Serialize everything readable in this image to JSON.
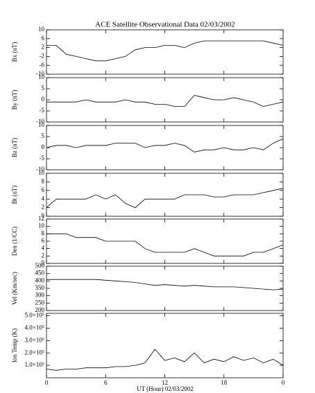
{
  "title": "ACE Satellite Observational Data   02/03/2002",
  "xlabel": "UT (Hour)  02/03/2002",
  "xlim": [
    0,
    24
  ],
  "xticks": [
    0,
    6,
    12,
    18,
    {
      "value": 24,
      "label": "0"
    }
  ],
  "x": [
    0,
    1,
    2,
    3,
    4,
    5,
    6,
    7,
    8,
    9,
    10,
    11,
    12,
    13,
    14,
    15,
    16,
    17,
    18,
    19,
    20,
    21,
    22,
    23,
    24
  ],
  "chart_data": [
    {
      "type": "line",
      "ylabel": "Bx (nT)",
      "ylim": [
        -10,
        10
      ],
      "yticks": [
        -10,
        -6,
        -2,
        2,
        6,
        10
      ],
      "color": "#000000",
      "values": [
        3,
        3,
        -1,
        -2,
        -3,
        -4,
        -4,
        -3,
        -2,
        1,
        2,
        2,
        3,
        3,
        2,
        4,
        5,
        5,
        5,
        5,
        5,
        5,
        5,
        4,
        3
      ]
    },
    {
      "type": "line",
      "ylabel": "By (nT)",
      "ylim": [
        -10,
        10
      ],
      "yticks": [
        -10,
        -5,
        0,
        5,
        10
      ],
      "color": "#000000",
      "values": [
        -1,
        -1,
        -1,
        -1,
        0,
        -1,
        -1,
        -1,
        0,
        -1,
        -1,
        -2,
        -2,
        -3,
        -3,
        2,
        1,
        0,
        0,
        1,
        0,
        -1,
        -3,
        -2,
        -1
      ]
    },
    {
      "type": "line",
      "ylabel": "Bz (nT)",
      "ylim": [
        -10,
        10
      ],
      "yticks": [
        -10,
        -5,
        0,
        5,
        10
      ],
      "color": "#000000",
      "values": [
        0,
        1,
        1,
        0,
        1,
        1,
        1,
        2,
        2,
        2,
        0,
        1,
        1,
        2,
        1,
        -2,
        -1,
        -1,
        0,
        -1,
        -1,
        0,
        -1,
        2,
        4
      ]
    },
    {
      "type": "line",
      "ylabel": "Bt (nT)",
      "ylim": [
        0,
        10
      ],
      "yticks": [
        0,
        2,
        4,
        6,
        8,
        10
      ],
      "color": "#000000",
      "values": [
        2,
        4,
        4,
        4,
        4,
        5,
        4,
        5,
        3,
        2,
        4,
        4,
        4,
        4,
        5,
        5,
        5,
        4.5,
        4.5,
        5,
        5,
        5,
        5.5,
        6,
        6.5
      ]
    },
    {
      "type": "line",
      "ylabel": "Den (1/CC)",
      "ylim": [
        0,
        12
      ],
      "yticks": [
        0,
        2,
        4,
        6,
        8,
        10,
        12
      ],
      "color": "#000000",
      "values": [
        8,
        8,
        8,
        7,
        7,
        7,
        6,
        6,
        6,
        6,
        4,
        3,
        3,
        3,
        3,
        4,
        3,
        2,
        2,
        2,
        2,
        3,
        3,
        4,
        5
      ]
    },
    {
      "type": "line",
      "ylabel": "Vel (Km/sec)",
      "ylim": [
        200,
        500
      ],
      "yticks": [
        200,
        250,
        300,
        350,
        400,
        450,
        500
      ],
      "color": "#000000",
      "values": [
        410,
        410,
        410,
        410,
        410,
        410,
        405,
        400,
        395,
        390,
        380,
        370,
        375,
        370,
        365,
        370,
        365,
        360,
        360,
        360,
        355,
        350,
        345,
        340,
        345
      ]
    },
    {
      "type": "line",
      "ylabel": "Ion Temp (K)",
      "ylim": [
        0,
        520000
      ],
      "color": "#000000",
      "yticks": [
        {
          "value": 100000,
          "label": "1.0×10⁵"
        },
        {
          "value": 200000,
          "label": "2.0×10⁵"
        },
        {
          "value": 300000,
          "label": "3.0×10⁵"
        },
        {
          "value": 400000,
          "label": "4.0×10⁵"
        },
        {
          "value": 500000,
          "label": "5.0×10⁵"
        }
      ],
      "values": [
        70000,
        60000,
        70000,
        70000,
        80000,
        80000,
        80000,
        90000,
        90000,
        100000,
        120000,
        230000,
        140000,
        160000,
        130000,
        200000,
        120000,
        150000,
        130000,
        170000,
        140000,
        160000,
        120000,
        150000,
        100000
      ]
    }
  ]
}
